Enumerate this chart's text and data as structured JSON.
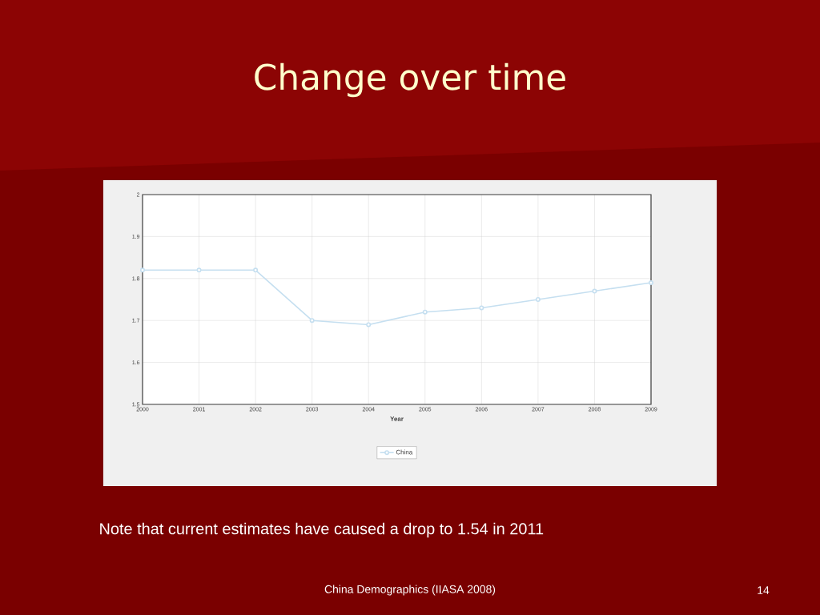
{
  "chart_data": {
    "type": "line",
    "title": "Change over time",
    "xlabel": "Year",
    "x": [
      2000,
      2001,
      2002,
      2003,
      2004,
      2005,
      2006,
      2007,
      2008,
      2009
    ],
    "series": [
      {
        "name": "China",
        "color": "#c5dff0",
        "values": [
          1.82,
          1.82,
          1.82,
          1.7,
          1.69,
          1.72,
          1.73,
          1.75,
          1.77,
          1.79
        ]
      }
    ],
    "xlim": [
      2000,
      2009
    ],
    "xticks": [
      2000,
      2001,
      2002,
      2003,
      2004,
      2005,
      2006,
      2007,
      2008,
      2009
    ],
    "ylim": [
      1.5,
      2
    ],
    "yticks": [
      1.5,
      1.6,
      1.7,
      1.8,
      1.9,
      2
    ],
    "grid": true,
    "legend": "bottom",
    "marker": "circle",
    "line_style": "solid",
    "annotations": [
      "Note that current estimates have caused a drop to 1.54 in 2011",
      "China Demographics (IIASA 2008)",
      "14"
    ]
  }
}
